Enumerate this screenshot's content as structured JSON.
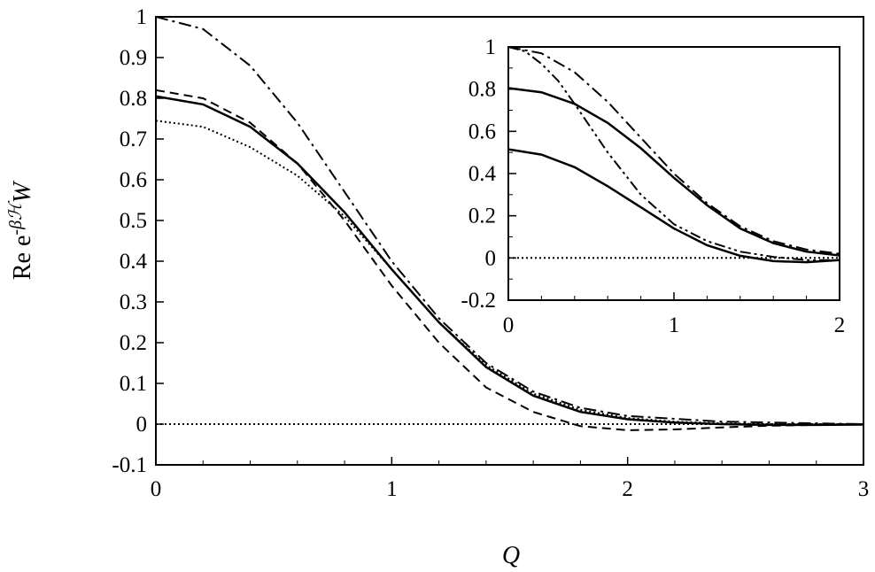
{
  "chart_data": [
    {
      "type": "line",
      "xlabel": "Q",
      "ylabel": "Re e-βℋW",
      "ylabel_parts": {
        "base": "Re e",
        "sup": "-βℋ",
        "tail": "W"
      },
      "xlim": [
        0,
        3
      ],
      "ylim": [
        -0.1,
        1
      ],
      "x_ticks": [
        "0",
        "1",
        "2",
        "3"
      ],
      "y_ticks": [
        "-0.1",
        "0",
        "0.1",
        "0.2",
        "0.3",
        "0.4",
        "0.5",
        "0.6",
        "0.7",
        "0.8",
        "0.9",
        "1"
      ],
      "grid": false,
      "series": [
        {
          "style": "dashdot",
          "x": [
            0,
            0.2,
            0.4,
            0.6,
            0.8,
            1.0,
            1.2,
            1.4,
            1.6,
            1.8,
            2.0,
            2.4,
            2.8,
            3.0
          ],
          "y": [
            1.0,
            0.97,
            0.88,
            0.74,
            0.57,
            0.4,
            0.26,
            0.15,
            0.08,
            0.04,
            0.02,
            0.006,
            0.002,
            0.0
          ]
        },
        {
          "style": "dashed",
          "x": [
            0,
            0.2,
            0.4,
            0.6,
            0.8,
            1.0,
            1.2,
            1.4,
            1.6,
            1.8,
            2.0,
            2.2,
            2.4,
            2.6,
            2.8,
            3.0
          ],
          "y": [
            0.82,
            0.8,
            0.74,
            0.64,
            0.5,
            0.34,
            0.2,
            0.09,
            0.03,
            -0.005,
            -0.015,
            -0.013,
            -0.008,
            -0.004,
            -0.002,
            0.0
          ]
        },
        {
          "style": "solid",
          "x": [
            0,
            0.2,
            0.4,
            0.6,
            0.8,
            1.0,
            1.2,
            1.4,
            1.6,
            1.8,
            2.0,
            2.2,
            2.4,
            2.6,
            2.8,
            3.0
          ],
          "y": [
            0.805,
            0.785,
            0.73,
            0.64,
            0.52,
            0.38,
            0.25,
            0.14,
            0.07,
            0.03,
            0.012,
            0.004,
            0.0,
            -0.002,
            -0.002,
            -0.001
          ]
        },
        {
          "style": "dotted",
          "x": [
            0,
            0.2,
            0.4,
            0.6,
            0.8,
            1.0,
            1.2,
            1.4,
            1.6,
            1.8,
            2.0,
            2.2,
            2.4,
            2.6,
            2.8,
            3.0
          ],
          "y": [
            0.745,
            0.73,
            0.68,
            0.61,
            0.51,
            0.38,
            0.25,
            0.145,
            0.075,
            0.035,
            0.015,
            0.006,
            0.002,
            0.0,
            0.0,
            0.0
          ]
        },
        {
          "style": "zero-line-dotted",
          "x": [
            0,
            3
          ],
          "y": [
            0,
            0
          ]
        }
      ]
    },
    {
      "type": "line",
      "role": "inset",
      "xlim": [
        0,
        2
      ],
      "ylim": [
        -0.2,
        1
      ],
      "x_ticks": [
        "0",
        "1",
        "2"
      ],
      "y_ticks": [
        "-0.2",
        "0",
        "0.2",
        "0.4",
        "0.6",
        "0.8",
        "1"
      ],
      "grid": false,
      "series": [
        {
          "style": "dashdot",
          "x": [
            0,
            0.2,
            0.4,
            0.6,
            0.8,
            1.0,
            1.2,
            1.4,
            1.6,
            1.8,
            2.0
          ],
          "y": [
            1.0,
            0.97,
            0.88,
            0.74,
            0.57,
            0.4,
            0.26,
            0.15,
            0.08,
            0.04,
            0.02
          ]
        },
        {
          "style": "dashdotdot",
          "x": [
            0,
            0.1,
            0.2,
            0.3,
            0.4,
            0.6,
            0.8,
            1.0,
            1.2,
            1.4,
            1.6,
            1.8,
            2.0
          ],
          "y": [
            1.0,
            0.98,
            0.92,
            0.84,
            0.73,
            0.5,
            0.3,
            0.16,
            0.08,
            0.03,
            0.005,
            -0.01,
            -0.01
          ]
        },
        {
          "style": "solid",
          "x": [
            0,
            0.2,
            0.4,
            0.6,
            0.8,
            1.0,
            1.2,
            1.4,
            1.6,
            1.8,
            2.0
          ],
          "y": [
            0.805,
            0.785,
            0.73,
            0.64,
            0.52,
            0.38,
            0.25,
            0.14,
            0.07,
            0.03,
            0.012
          ]
        },
        {
          "style": "solid",
          "x": [
            0,
            0.2,
            0.4,
            0.6,
            0.8,
            1.0,
            1.2,
            1.4,
            1.6,
            1.8,
            2.0
          ],
          "y": [
            0.515,
            0.49,
            0.43,
            0.34,
            0.24,
            0.14,
            0.06,
            0.01,
            -0.015,
            -0.02,
            -0.01
          ]
        },
        {
          "style": "dotted",
          "x": [
            0,
            2
          ],
          "y": [
            0,
            0
          ]
        }
      ]
    }
  ]
}
